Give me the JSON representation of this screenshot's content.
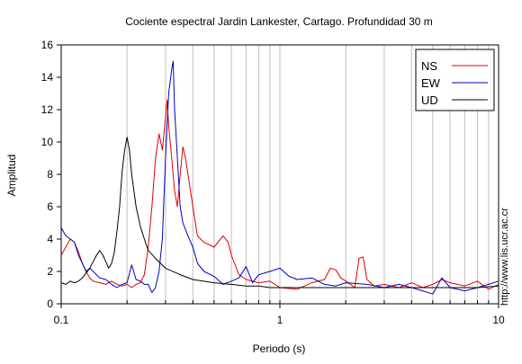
{
  "chart_data": {
    "type": "line",
    "title": "Cociente espectral Jardin Lankester, Cartago. Profundidad 30 m",
    "xlabel": "Periodo (s)",
    "ylabel": "Amplitud",
    "xscale": "log",
    "xlim": [
      0.1,
      10
    ],
    "ylim": [
      0,
      16
    ],
    "xticks": [
      {
        "value": 0.1,
        "label": "0.1"
      },
      {
        "value": 1,
        "label": "1"
      },
      {
        "value": 10,
        "label": "10"
      }
    ],
    "yticks": [
      0,
      2,
      4,
      6,
      8,
      10,
      12,
      14,
      16
    ],
    "grid": "vertical-minor",
    "legend_position": "top-right",
    "series": [
      {
        "name": "NS",
        "color": "#e00000",
        "points": [
          [
            0.1,
            3.0
          ],
          [
            0.105,
            3.5
          ],
          [
            0.11,
            4.0
          ],
          [
            0.115,
            3.8
          ],
          [
            0.12,
            3.2
          ],
          [
            0.125,
            2.5
          ],
          [
            0.13,
            2.0
          ],
          [
            0.135,
            1.6
          ],
          [
            0.14,
            1.4
          ],
          [
            0.15,
            1.3
          ],
          [
            0.16,
            1.2
          ],
          [
            0.17,
            1.4
          ],
          [
            0.18,
            1.2
          ],
          [
            0.19,
            1.1
          ],
          [
            0.2,
            1.2
          ],
          [
            0.21,
            1.0
          ],
          [
            0.22,
            1.2
          ],
          [
            0.23,
            1.3
          ],
          [
            0.24,
            1.8
          ],
          [
            0.25,
            3.5
          ],
          [
            0.26,
            6.0
          ],
          [
            0.27,
            9.0
          ],
          [
            0.28,
            10.5
          ],
          [
            0.29,
            9.5
          ],
          [
            0.3,
            11.5
          ],
          [
            0.305,
            12.6
          ],
          [
            0.31,
            11.0
          ],
          [
            0.315,
            10.0
          ],
          [
            0.32,
            9.0
          ],
          [
            0.33,
            7.0
          ],
          [
            0.34,
            6.0
          ],
          [
            0.35,
            8.0
          ],
          [
            0.36,
            9.7
          ],
          [
            0.37,
            9.0
          ],
          [
            0.38,
            8.0
          ],
          [
            0.4,
            6.0
          ],
          [
            0.42,
            4.2
          ],
          [
            0.45,
            3.8
          ],
          [
            0.5,
            3.5
          ],
          [
            0.55,
            4.2
          ],
          [
            0.58,
            3.8
          ],
          [
            0.6,
            3.0
          ],
          [
            0.65,
            1.8
          ],
          [
            0.7,
            1.5
          ],
          [
            0.8,
            1.3
          ],
          [
            0.9,
            1.4
          ],
          [
            1.0,
            1.0
          ],
          [
            1.2,
            0.9
          ],
          [
            1.4,
            1.3
          ],
          [
            1.6,
            1.5
          ],
          [
            1.7,
            2.2
          ],
          [
            1.8,
            2.1
          ],
          [
            1.9,
            1.6
          ],
          [
            2.0,
            1.4
          ],
          [
            2.1,
            1.2
          ],
          [
            2.2,
            1.0
          ],
          [
            2.3,
            2.8
          ],
          [
            2.4,
            2.9
          ],
          [
            2.5,
            1.5
          ],
          [
            2.7,
            1.1
          ],
          [
            3.0,
            1.2
          ],
          [
            3.5,
            1.0
          ],
          [
            4.0,
            1.3
          ],
          [
            4.5,
            1.0
          ],
          [
            5.0,
            1.2
          ],
          [
            5.5,
            1.5
          ],
          [
            6.0,
            1.3
          ],
          [
            7.0,
            1.1
          ],
          [
            8.0,
            1.4
          ],
          [
            9.0,
            0.9
          ],
          [
            10.0,
            1.2
          ]
        ]
      },
      {
        "name": "EW",
        "color": "#0000c0",
        "points": [
          [
            0.1,
            4.7
          ],
          [
            0.105,
            4.2
          ],
          [
            0.11,
            4.0
          ],
          [
            0.115,
            3.8
          ],
          [
            0.12,
            3.0
          ],
          [
            0.125,
            2.5
          ],
          [
            0.13,
            2.0
          ],
          [
            0.135,
            2.2
          ],
          [
            0.14,
            2.0
          ],
          [
            0.15,
            1.6
          ],
          [
            0.16,
            1.5
          ],
          [
            0.17,
            1.2
          ],
          [
            0.18,
            1.0
          ],
          [
            0.19,
            1.2
          ],
          [
            0.2,
            1.3
          ],
          [
            0.21,
            2.4
          ],
          [
            0.22,
            1.5
          ],
          [
            0.23,
            1.4
          ],
          [
            0.24,
            1.2
          ],
          [
            0.25,
            1.2
          ],
          [
            0.26,
            0.7
          ],
          [
            0.27,
            1.0
          ],
          [
            0.28,
            2.0
          ],
          [
            0.29,
            4.0
          ],
          [
            0.3,
            9.0
          ],
          [
            0.31,
            13.0
          ],
          [
            0.32,
            14.5
          ],
          [
            0.325,
            15.0
          ],
          [
            0.33,
            12.0
          ],
          [
            0.34,
            9.0
          ],
          [
            0.35,
            6.0
          ],
          [
            0.36,
            5.0
          ],
          [
            0.38,
            4.2
          ],
          [
            0.4,
            3.5
          ],
          [
            0.42,
            2.5
          ],
          [
            0.45,
            2.0
          ],
          [
            0.5,
            1.7
          ],
          [
            0.55,
            1.2
          ],
          [
            0.6,
            1.4
          ],
          [
            0.65,
            1.6
          ],
          [
            0.7,
            2.3
          ],
          [
            0.75,
            1.3
          ],
          [
            0.8,
            1.8
          ],
          [
            0.9,
            2.0
          ],
          [
            1.0,
            2.2
          ],
          [
            1.1,
            1.7
          ],
          [
            1.2,
            1.5
          ],
          [
            1.4,
            1.6
          ],
          [
            1.6,
            1.2
          ],
          [
            1.8,
            1.1
          ],
          [
            2.0,
            1.3
          ],
          [
            2.5,
            1.2
          ],
          [
            3.0,
            1.0
          ],
          [
            3.5,
            1.2
          ],
          [
            4.0,
            1.0
          ],
          [
            4.5,
            0.8
          ],
          [
            5.0,
            0.6
          ],
          [
            5.5,
            1.6
          ],
          [
            6.0,
            1.0
          ],
          [
            7.0,
            0.8
          ],
          [
            8.0,
            1.0
          ],
          [
            9.0,
            1.2
          ],
          [
            10.0,
            1.4
          ]
        ]
      },
      {
        "name": "UD",
        "color": "#000000",
        "points": [
          [
            0.1,
            1.3
          ],
          [
            0.105,
            1.2
          ],
          [
            0.11,
            1.4
          ],
          [
            0.115,
            1.3
          ],
          [
            0.12,
            1.4
          ],
          [
            0.125,
            1.6
          ],
          [
            0.13,
            1.9
          ],
          [
            0.135,
            2.2
          ],
          [
            0.14,
            2.6
          ],
          [
            0.145,
            3.0
          ],
          [
            0.15,
            3.3
          ],
          [
            0.155,
            3.0
          ],
          [
            0.16,
            2.6
          ],
          [
            0.165,
            2.2
          ],
          [
            0.17,
            2.5
          ],
          [
            0.175,
            3.2
          ],
          [
            0.18,
            4.5
          ],
          [
            0.185,
            6.0
          ],
          [
            0.19,
            8.2
          ],
          [
            0.195,
            9.5
          ],
          [
            0.2,
            10.3
          ],
          [
            0.205,
            9.5
          ],
          [
            0.21,
            8.0
          ],
          [
            0.22,
            6.0
          ],
          [
            0.23,
            4.8
          ],
          [
            0.24,
            4.0
          ],
          [
            0.25,
            3.3
          ],
          [
            0.27,
            2.8
          ],
          [
            0.3,
            2.2
          ],
          [
            0.35,
            1.8
          ],
          [
            0.4,
            1.5
          ],
          [
            0.5,
            1.3
          ],
          [
            0.6,
            1.2
          ],
          [
            0.7,
            1.1
          ],
          [
            0.8,
            1.1
          ],
          [
            0.9,
            1.0
          ],
          [
            1.0,
            1.0
          ],
          [
            1.5,
            1.0
          ],
          [
            2.0,
            1.0
          ],
          [
            3.0,
            1.0
          ],
          [
            4.0,
            1.0
          ],
          [
            5.0,
            1.0
          ],
          [
            6.0,
            1.0
          ],
          [
            8.0,
            1.0
          ],
          [
            10.0,
            1.1
          ]
        ]
      }
    ]
  },
  "credit": "http://www.lis.ucr.ac.cr"
}
